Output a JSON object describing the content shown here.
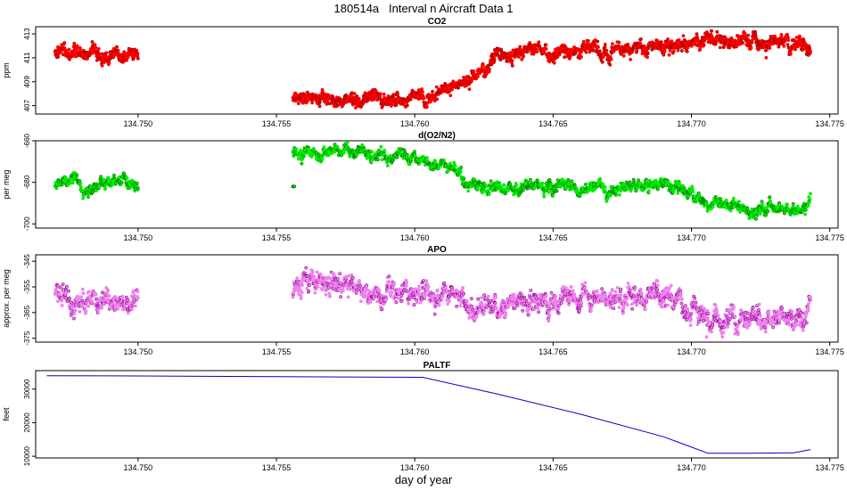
{
  "page": {
    "title": "180514a   Interval n Aircraft Data 1",
    "x_axis_title": "day of year"
  },
  "chart_data": [
    {
      "type": "scatter",
      "title": "CO2",
      "ylabel": "ppm",
      "color": "#ff0000",
      "edge_color": "#8b0000",
      "xlim": [
        134.7463,
        134.7753
      ],
      "ylim": [
        406.3,
        413.6
      ],
      "x_ticks": [
        "134.750",
        "134.755",
        "134.760",
        "134.765",
        "134.770",
        "134.775"
      ],
      "y_ticks": [
        "407",
        "409",
        "411",
        "413"
      ],
      "series": [
        {
          "x": [
            134.747,
            134.7475,
            134.748,
            134.7485,
            134.749,
            134.7495,
            134.75,
            134.7556,
            134.7565,
            134.7575,
            134.7585,
            134.7595,
            134.7605,
            134.7612,
            134.7618,
            134.7623,
            134.763,
            134.764,
            134.765,
            134.766,
            134.767,
            134.768,
            134.769,
            134.77,
            134.771,
            134.772,
            134.773,
            134.774,
            134.7743
          ],
          "y": [
            411.5,
            411.2,
            410.9,
            411.4,
            411.3,
            411.1,
            411.4,
            407.6,
            407.7,
            407.6,
            407.6,
            407.6,
            407.7,
            408.2,
            408.8,
            409.8,
            411.2,
            411.6,
            411.6,
            411.5,
            411.7,
            411.5,
            411.8,
            412.1,
            412.3,
            412.3,
            412.4,
            412.2,
            411.8
          ]
        }
      ]
    },
    {
      "type": "scatter",
      "title": "d(O2/N2)",
      "ylabel": "per meg",
      "color": "#00ee00",
      "edge_color": "#006400",
      "xlim": [
        134.7463,
        134.7753
      ],
      "ylim": [
        -702,
        -660
      ],
      "x_ticks": [
        "134.750",
        "134.755",
        "134.760",
        "134.765",
        "134.770",
        "134.775"
      ],
      "y_ticks": [
        "-700",
        "-680",
        "-660"
      ],
      "series": [
        {
          "x": [
            134.747,
            134.7475,
            134.7478,
            134.748,
            134.7485,
            134.749,
            134.7495,
            134.75,
            134.7556,
            134.756,
            134.7565,
            134.757,
            134.7575,
            134.758,
            134.7585,
            134.759,
            134.7595,
            134.76,
            134.7605,
            134.761,
            134.7615,
            134.762,
            134.7625,
            134.763,
            134.764,
            134.765,
            134.766,
            134.767,
            134.768,
            134.769,
            134.77,
            134.7705,
            134.771,
            134.772,
            134.773,
            134.774,
            134.7743
          ],
          "y": [
            -681,
            -679,
            -677,
            -683,
            -682,
            -680,
            -680,
            -682,
            -665,
            -666,
            -666,
            -664,
            -665,
            -666,
            -666,
            -667,
            -668,
            -669,
            -670,
            -672,
            -675,
            -683,
            -682,
            -682,
            -682,
            -683,
            -682,
            -683,
            -682,
            -681,
            -684,
            -690,
            -691,
            -694,
            -694,
            -693,
            -689
          ]
        }
      ],
      "outliers": [
        [
          134.7556,
          -682
        ]
      ]
    },
    {
      "type": "scatter",
      "title": "APO",
      "ylabel": "approx. per meg",
      "color": "#ee82ee",
      "edge_color": "#8b008b",
      "xlim": [
        134.7463,
        134.7753
      ],
      "ylim": [
        -376.5,
        -342.5
      ],
      "x_ticks": [
        "134.750",
        "134.755",
        "134.760",
        "134.765",
        "134.770",
        "134.775"
      ],
      "y_ticks": [
        "-375",
        "-365",
        "-355",
        "-345"
      ],
      "series": [
        {
          "x": [
            134.747,
            134.7475,
            134.748,
            134.7485,
            134.749,
            134.7495,
            134.75,
            134.7556,
            134.756,
            134.7565,
            134.757,
            134.7575,
            134.758,
            134.7585,
            134.759,
            134.7595,
            134.76,
            134.7605,
            134.761,
            134.7615,
            134.762,
            134.7625,
            134.763,
            134.764,
            134.765,
            134.766,
            134.767,
            134.768,
            134.769,
            134.77,
            134.7705,
            134.771,
            134.772,
            134.773,
            134.774,
            134.7743
          ],
          "y": [
            -358,
            -360,
            -362,
            -360,
            -361,
            -359,
            -361,
            -355,
            -356,
            -355,
            -354,
            -356,
            -355,
            -357,
            -356,
            -357,
            -357,
            -358,
            -359,
            -360,
            -362,
            -364,
            -362,
            -359,
            -359,
            -359,
            -359,
            -359,
            -358,
            -362,
            -366,
            -368,
            -368,
            -368,
            -367,
            -363
          ]
        }
      ]
    },
    {
      "type": "line",
      "title": "PALTF",
      "ylabel": "feet",
      "color": "#0000cc",
      "xlim": [
        134.7463,
        134.7753
      ],
      "ylim": [
        9500,
        35500
      ],
      "x_ticks": [
        "134.750",
        "134.755",
        "134.760",
        "134.765",
        "134.770",
        "134.775"
      ],
      "y_ticks": [
        "10000",
        "20000",
        "30000"
      ],
      "series": [
        {
          "x": [
            134.7467,
            134.75,
            134.755,
            134.7603,
            134.7604,
            134.763,
            134.766,
            134.769,
            134.7706,
            134.772,
            134.7737,
            134.7743
          ],
          "y": [
            34000,
            33900,
            33700,
            33500,
            33300,
            28500,
            22500,
            15800,
            10900,
            10900,
            11000,
            12000
          ]
        }
      ]
    }
  ]
}
